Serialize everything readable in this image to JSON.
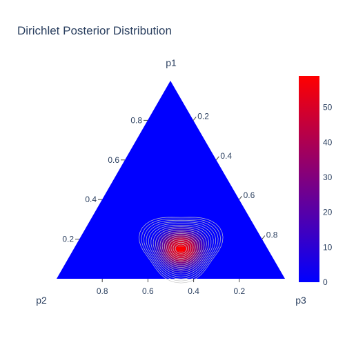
{
  "chart_data": {
    "type": "ternary-contour",
    "title": "Dirichlet Posterior Distribution",
    "axes": {
      "a": {
        "title": "p1",
        "ticks": [
          "0.2",
          "0.4",
          "0.6",
          "0.8"
        ]
      },
      "b": {
        "title": "p2",
        "ticks": [
          "0.2",
          "0.4",
          "0.6",
          "0.8"
        ]
      },
      "c": {
        "title": "p3",
        "ticks": [
          "0.2",
          "0.4",
          "0.6",
          "0.8"
        ]
      }
    },
    "a_tick_values": [
      0.2,
      0.4,
      0.6,
      0.8
    ],
    "b_tick_values": [
      0.8,
      0.6,
      0.4,
      0.2
    ],
    "c_tick_values": [
      0.2,
      0.4,
      0.6,
      0.8
    ],
    "background_color": "#0000ff",
    "contour_line_color": "#c8c8c8",
    "peak": {
      "p1": 0.15,
      "p2": 0.38,
      "p3": 0.47,
      "density": 58
    },
    "colorbar": {
      "min": 0,
      "max": 59,
      "ticks": [
        0,
        10,
        20,
        30,
        40,
        50
      ],
      "tick_labels": [
        "0",
        "10",
        "20",
        "30",
        "40",
        "50"
      ],
      "colorscale": [
        "#0000ff",
        "#ff0000"
      ]
    }
  }
}
